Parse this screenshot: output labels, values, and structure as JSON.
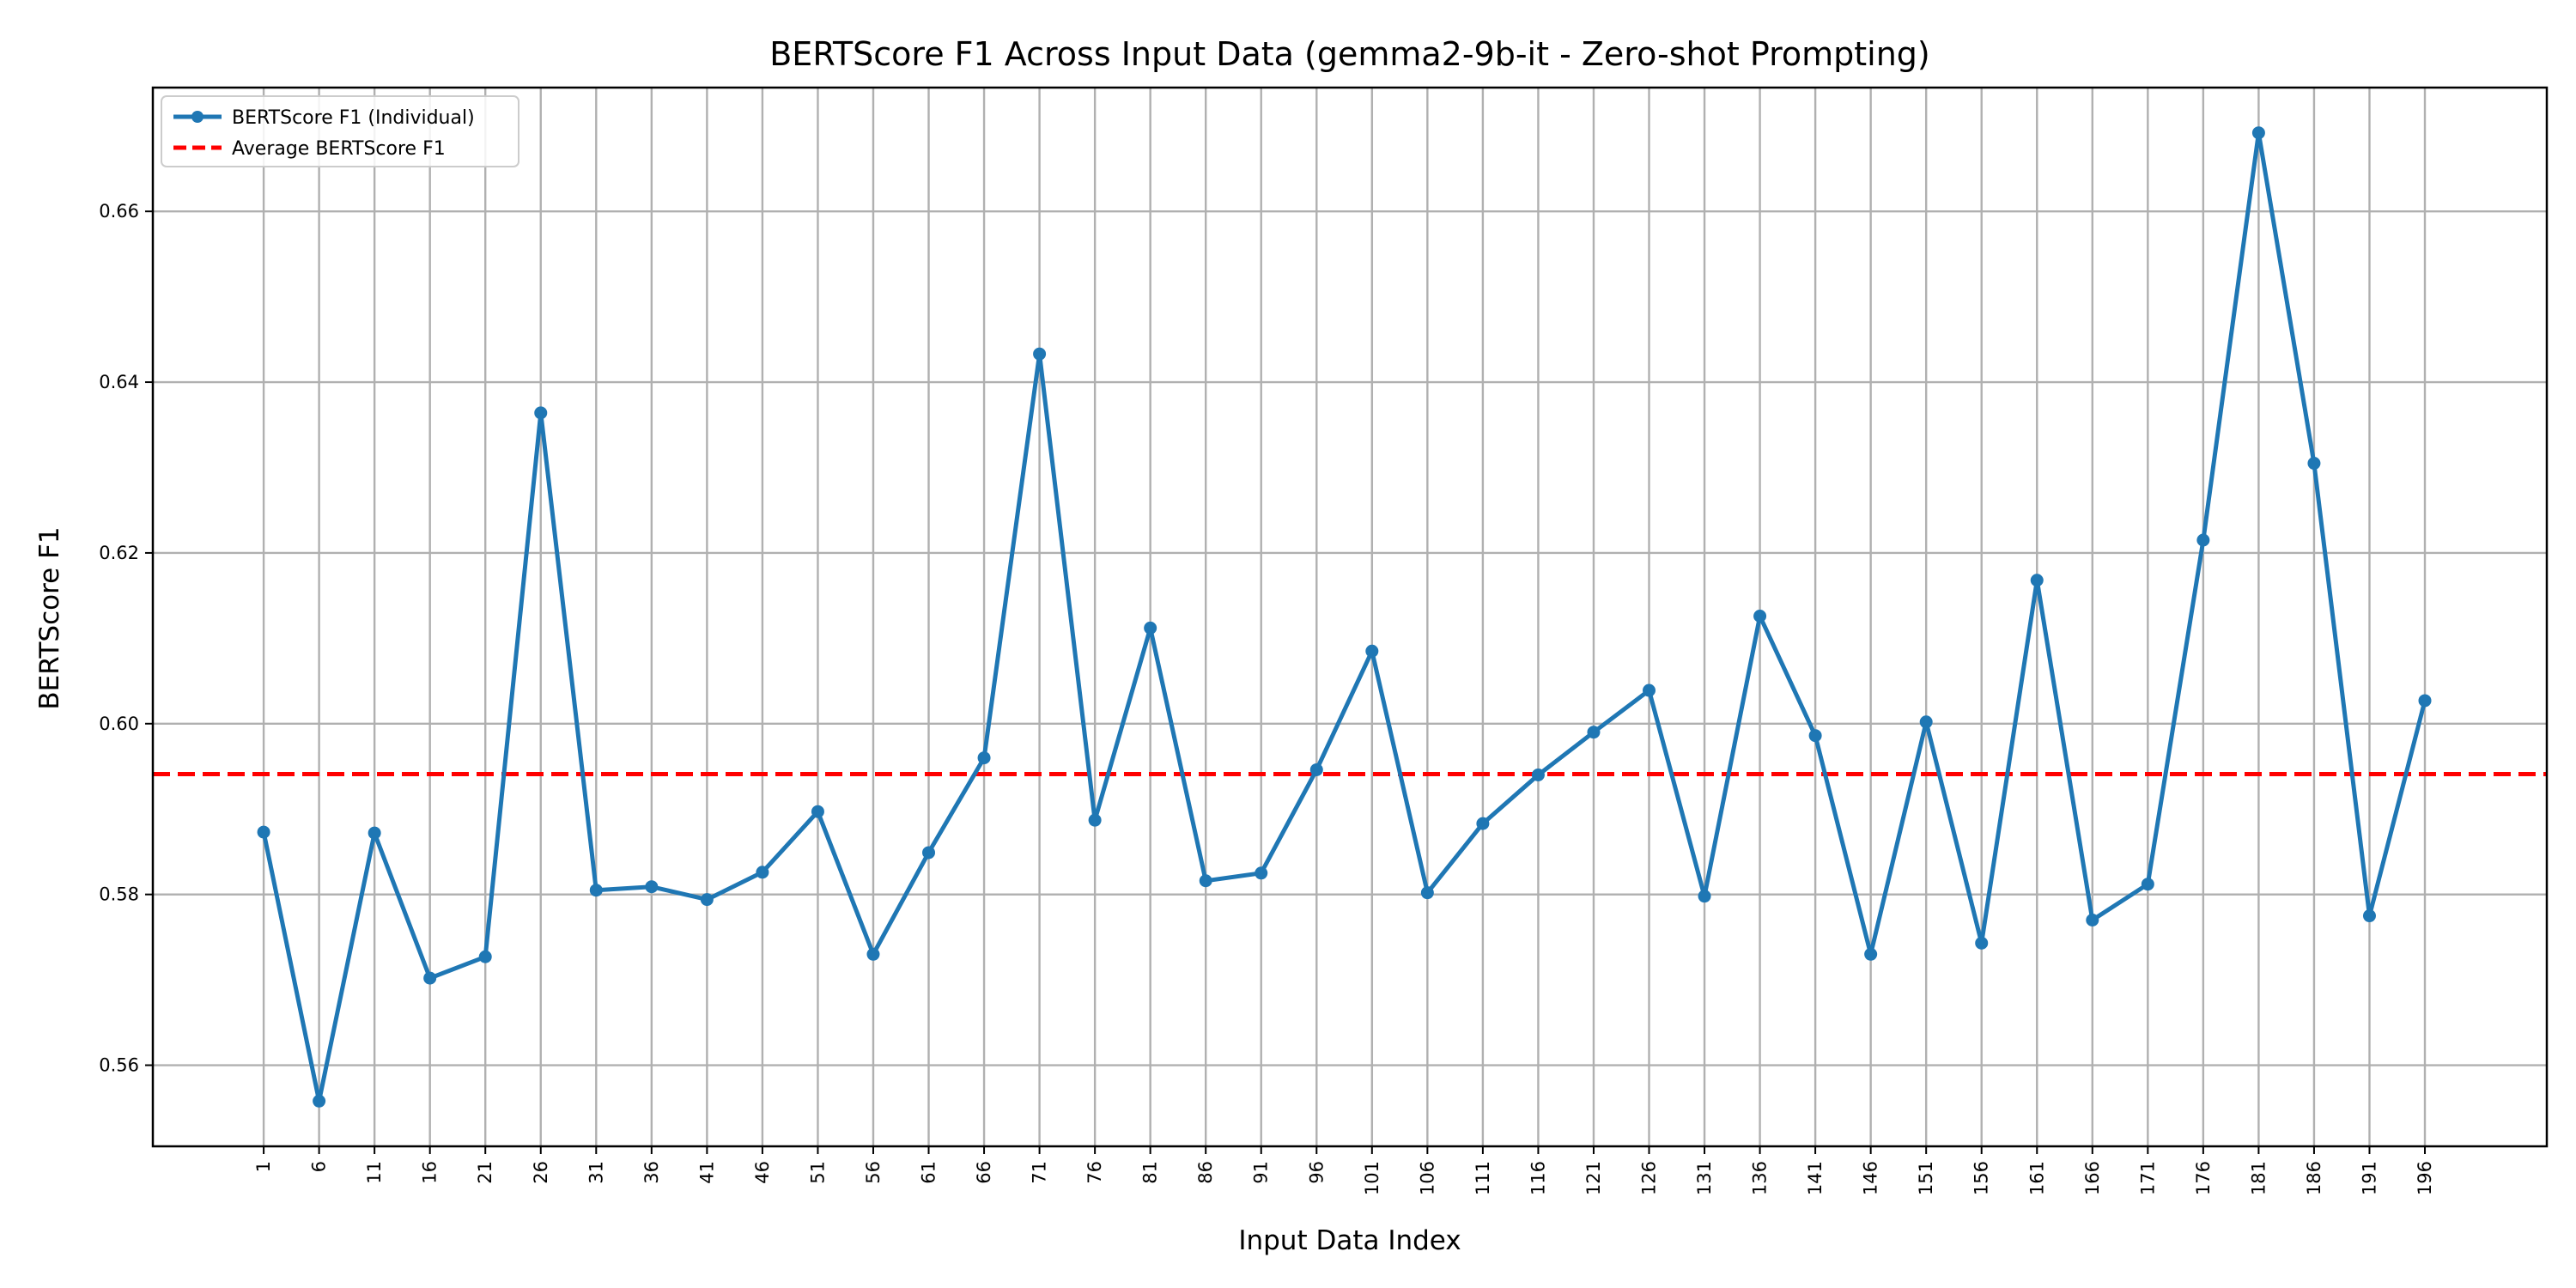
{
  "chart_data": {
    "type": "line",
    "title": "BERTScore F1 Across Input Data (gemma2-9b-it - Zero-shot Prompting)",
    "xlabel": "Input Data Index",
    "ylabel": "BERTScore F1",
    "x": [
      1,
      6,
      11,
      16,
      21,
      26,
      31,
      36,
      41,
      46,
      51,
      56,
      61,
      66,
      71,
      76,
      81,
      86,
      91,
      96,
      101,
      106,
      111,
      116,
      121,
      126,
      131,
      136,
      141,
      146,
      151,
      156,
      161,
      166,
      171,
      176,
      181,
      186,
      191,
      196
    ],
    "xticklabels": [
      "1",
      "6",
      "11",
      "16",
      "21",
      "26",
      "31",
      "36",
      "41",
      "46",
      "51",
      "56",
      "61",
      "66",
      "71",
      "76",
      "81",
      "86",
      "91",
      "96",
      "101",
      "106",
      "111",
      "116",
      "121",
      "126",
      "131",
      "136",
      "141",
      "146",
      "151",
      "156",
      "161",
      "166",
      "171",
      "176",
      "181",
      "186",
      "191",
      "196"
    ],
    "xlim": [
      -9,
      207
    ],
    "ylim": [
      0.5505,
      0.6745
    ],
    "yticks": [
      0.56,
      0.58,
      0.6,
      0.62,
      0.64,
      0.66
    ],
    "yticklabels": [
      "0.56",
      "0.58",
      "0.60",
      "0.62",
      "0.64",
      "0.66"
    ],
    "grid": true,
    "legend_position": "upper-left",
    "series": [
      {
        "name": "BERTScore F1 (Individual)",
        "color": "#1f77b4",
        "style": "solid",
        "marker": "circle",
        "values": [
          0.5873,
          0.5558,
          0.5872,
          0.5702,
          0.5727,
          0.6364,
          0.5805,
          0.5809,
          0.5794,
          0.5826,
          0.5897,
          0.573,
          0.5849,
          0.596,
          0.6433,
          0.5887,
          0.6112,
          0.5816,
          0.5825,
          0.5946,
          0.6085,
          0.5802,
          0.5883,
          0.594,
          0.599,
          0.6039,
          0.5798,
          0.6126,
          0.5986,
          0.573,
          0.6002,
          0.5743,
          0.6168,
          0.577,
          0.5812,
          0.6215,
          0.6692,
          0.6305,
          0.5775,
          0.6027
        ]
      },
      {
        "name": "Average BERTScore F1",
        "color": "#ff0000",
        "style": "dashed",
        "value": 0.5941
      }
    ]
  }
}
